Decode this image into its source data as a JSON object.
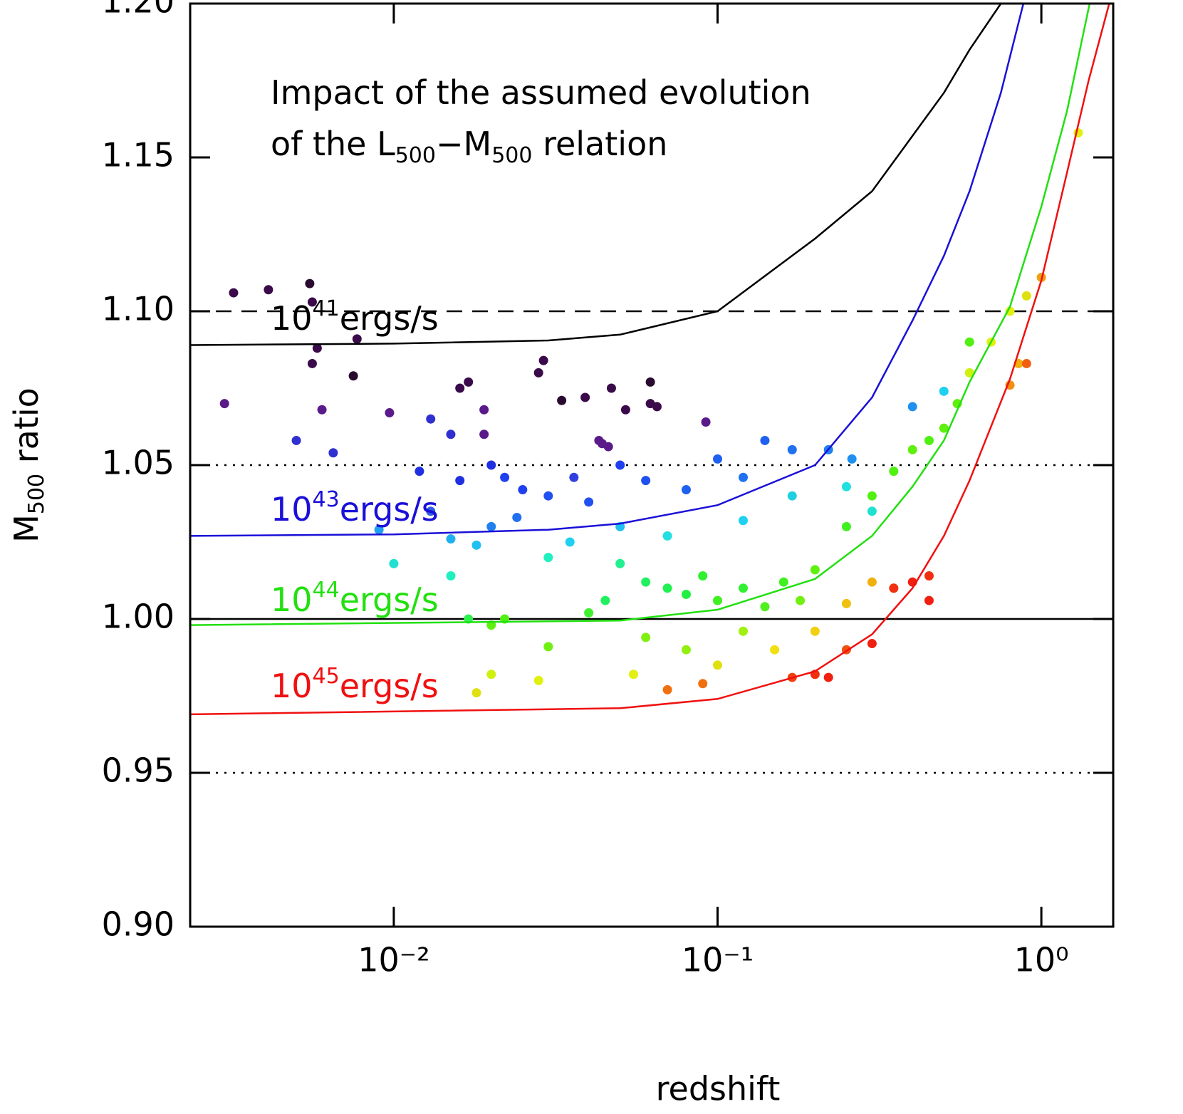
{
  "chart_data": {
    "type": "scatter",
    "title_lines": [
      [
        "Impact of the assumed evolution"
      ],
      [
        "of the L",
        "500",
        "−M",
        "500",
        " relation"
      ]
    ],
    "xlabel": "redshift",
    "ylabel": [
      "M",
      "500",
      " ratio"
    ],
    "log_x": true,
    "xlim": [
      0.00235,
      1.667
    ],
    "ylim": [
      0.9,
      1.2
    ],
    "xticks": [
      {
        "value": 0.01,
        "label": "10⁻²"
      },
      {
        "value": 0.1,
        "label": "10⁻¹"
      },
      {
        "value": 1,
        "label": "10⁰"
      }
    ],
    "yticks": [
      {
        "value": 0.9,
        "label": "0.90"
      },
      0.95,
      {
        "value": 1.0,
        "label": "1.00"
      },
      1.05,
      {
        "value": 1.1,
        "label": "1.10"
      },
      1.15,
      {
        "value": 1.2,
        "label": "1.20"
      }
    ],
    "hlines": [
      {
        "value": 1.1,
        "style": "dashed"
      },
      {
        "value": 1.05,
        "style": "dotted"
      },
      {
        "value": 1.0,
        "style": "solid"
      },
      {
        "value": 0.95,
        "style": "dotted"
      }
    ],
    "curves": [
      {
        "label": [
          "10",
          "41",
          "ergs/s"
        ],
        "color": "#000000",
        "x": [
          0.00235,
          0.01,
          0.03,
          0.05,
          0.1,
          0.2,
          0.3,
          0.4,
          0.5,
          0.6,
          0.75
        ],
        "values": [
          1.089,
          1.0895,
          1.0905,
          1.0924,
          1.1,
          1.1236,
          1.139,
          1.157,
          1.171,
          1.185,
          1.2
        ]
      },
      {
        "label": [
          "10",
          "43",
          "ergs/s"
        ],
        "color": "#1a10d8",
        "x": [
          0.00235,
          0.01,
          0.03,
          0.05,
          0.1,
          0.2,
          0.3,
          0.4,
          0.5,
          0.6,
          0.75,
          0.88
        ],
        "values": [
          1.027,
          1.0275,
          1.029,
          1.031,
          1.037,
          1.05,
          1.072,
          1.097,
          1.118,
          1.139,
          1.171,
          1.2
        ]
      },
      {
        "label": [
          "10",
          "44",
          "ergs/s"
        ],
        "color": "#22e010",
        "x": [
          0.00235,
          0.05,
          0.1,
          0.2,
          0.3,
          0.4,
          0.5,
          0.6,
          0.8,
          1.0,
          1.2,
          1.41
        ],
        "values": [
          0.998,
          0.9995,
          1.003,
          1.013,
          1.027,
          1.043,
          1.058,
          1.077,
          1.1015,
          1.134,
          1.165,
          1.2
        ]
      },
      {
        "label": [
          "10",
          "45",
          "ergs/s"
        ],
        "color": "#f01010",
        "x": [
          0.00235,
          0.05,
          0.1,
          0.2,
          0.3,
          0.4,
          0.5,
          0.6,
          0.8,
          1.0,
          1.2,
          1.4,
          1.62
        ],
        "values": [
          0.969,
          0.971,
          0.974,
          0.983,
          0.995,
          1.01,
          1.027,
          1.045,
          1.078,
          1.11,
          1.145,
          1.175,
          1.2
        ]
      }
    ],
    "points": {
      "x": [
        0.0032,
        0.0041,
        0.0055,
        0.0056,
        0.0058,
        0.0056,
        0.0077,
        0.0075,
        0.003,
        0.006,
        0.0097,
        0.016,
        0.017,
        0.019,
        0.029,
        0.028,
        0.033,
        0.039,
        0.047,
        0.052,
        0.062,
        0.062,
        0.065,
        0.043,
        0.046,
        0.044,
        0.092,
        0.019,
        0.005,
        0.0065,
        0.012,
        0.013,
        0.015,
        0.016,
        0.02,
        0.022,
        0.025,
        0.03,
        0.036,
        0.04,
        0.05,
        0.06,
        0.08,
        0.1,
        0.12,
        0.14,
        0.17,
        0.22,
        0.26,
        0.4,
        0.013,
        0.02,
        0.024,
        0.009,
        0.015,
        0.018,
        0.035,
        0.05,
        0.07,
        0.12,
        0.17,
        0.25,
        0.3,
        0.5,
        0.01,
        0.015,
        0.03,
        0.06,
        0.07,
        0.08,
        0.09,
        0.1,
        0.12,
        0.14,
        0.16,
        0.18,
        0.2,
        0.25,
        0.3,
        0.35,
        0.4,
        0.45,
        0.5,
        0.55,
        0.6,
        0.045,
        0.05,
        0.04,
        0.017,
        0.02,
        0.022,
        0.03,
        0.06,
        0.08,
        0.12,
        0.02,
        0.028,
        0.018,
        0.055,
        0.1,
        0.15,
        0.2,
        0.25,
        0.3,
        0.35,
        0.6,
        0.7,
        0.8,
        0.9,
        0.85,
        1.0,
        1.3,
        0.8,
        0.07,
        0.09,
        0.17,
        0.2,
        0.22,
        0.25,
        0.3,
        0.35,
        0.4,
        0.45,
        0.45,
        0.9
      ],
      "values": [
        1.106,
        1.107,
        1.109,
        1.103,
        1.088,
        1.083,
        1.091,
        1.079,
        1.07,
        1.068,
        1.067,
        1.075,
        1.077,
        1.068,
        1.084,
        1.08,
        1.071,
        1.072,
        1.075,
        1.068,
        1.077,
        1.07,
        1.069,
        1.058,
        1.056,
        1.057,
        1.064,
        1.06,
        1.058,
        1.054,
        1.048,
        1.065,
        1.06,
        1.045,
        1.05,
        1.046,
        1.042,
        1.04,
        1.046,
        1.038,
        1.05,
        1.045,
        1.042,
        1.052,
        1.046,
        1.058,
        1.055,
        1.055,
        1.052,
        1.069,
        1.035,
        1.03,
        1.033,
        1.029,
        1.026,
        1.024,
        1.025,
        1.03,
        1.027,
        1.032,
        1.04,
        1.043,
        1.035,
        1.074,
        1.018,
        1.014,
        1.02,
        1.012,
        1.01,
        1.008,
        1.014,
        1.006,
        1.01,
        1.004,
        1.012,
        1.006,
        1.016,
        1.03,
        1.04,
        1.048,
        1.055,
        1.058,
        1.062,
        1.07,
        1.09,
        1.006,
        1.018,
        1.002,
        1.0,
        0.998,
        1.0,
        0.991,
        0.994,
        0.99,
        0.996,
        0.982,
        0.98,
        0.976,
        0.982,
        0.985,
        0.99,
        0.996,
        1.005,
        1.012,
        1.01,
        1.08,
        1.09,
        1.1,
        1.105,
        1.083,
        1.111,
        1.158,
        1.076,
        0.977,
        0.979,
        0.981,
        0.982,
        0.981,
        0.99,
        0.992,
        1.01,
        1.012,
        1.006,
        1.014,
        1.083
      ],
      "colors": [
        "#3a0a4a",
        "#3a0a4a",
        "#2a0a30",
        "#3a0a4a",
        "#3a0a4a",
        "#3a0a4a",
        "#3a0a4a",
        "#2a0a30",
        "#5a1a8a",
        "#5a1a8a",
        "#5a1a8a",
        "#3a0a4a",
        "#3a0a4a",
        "#5a1a8a",
        "#3a0a4a",
        "#3a0a4a",
        "#2a0a30",
        "#3a0a4a",
        "#3a0a4a",
        "#3a0a4a",
        "#2a0a30",
        "#3a0a4a",
        "#3a0a4a",
        "#5a1a8a",
        "#5a1a8a",
        "#5a1a8a",
        "#5a1a8a",
        "#5a1a8a",
        "#3030d0",
        "#3030d0",
        "#2030e0",
        "#3030d0",
        "#3030d0",
        "#2030e0",
        "#2030e0",
        "#2040f0",
        "#2040f0",
        "#2050f0",
        "#3040e0",
        "#2050f0",
        "#2040f0",
        "#2050f0",
        "#2060f0",
        "#2060f0",
        "#2070f0",
        "#2060f0",
        "#2070f0",
        "#2080f0",
        "#2090f0",
        "#2090f0",
        "#3060e0",
        "#2080f0",
        "#2070f0",
        "#20a0f0",
        "#20b0f0",
        "#20c0f0",
        "#20d0f0",
        "#20c0f0",
        "#20e0e0",
        "#20d0f0",
        "#20d0e0",
        "#20e0e0",
        "#20e0d0",
        "#20d0f0",
        "#20e0d0",
        "#20f0c0",
        "#20f0c0",
        "#20f060",
        "#20f050",
        "#20f040",
        "#30f030",
        "#40f020",
        "#30f030",
        "#50f020",
        "#40f020",
        "#70f010",
        "#60f010",
        "#40f020",
        "#50f010",
        "#50f010",
        "#60f010",
        "#50f010",
        "#60f010",
        "#60f010",
        "#50f010",
        "#20f060",
        "#20f090",
        "#40f030",
        "#30f050",
        "#60f010",
        "#50f010",
        "#70f010",
        "#80f010",
        "#90f010",
        "#a0f010",
        "#d0f010",
        "#e0f010",
        "#e0e010",
        "#e0f010",
        "#e0e010",
        "#f0e010",
        "#f0d010",
        "#f0c010",
        "#f0b010",
        "#f0a010",
        "#d0f010",
        "#e0f010",
        "#e0f010",
        "#e0e010",
        "#f0b010",
        "#f0a010",
        "#e0f010",
        "#f09010",
        "#f07010",
        "#f07010",
        "#f04010",
        "#f03010",
        "#f02010",
        "#f05010",
        "#f02010",
        "#f03010",
        "#f02010",
        "#f02010",
        "#f03010",
        "#f06010"
      ]
    }
  }
}
